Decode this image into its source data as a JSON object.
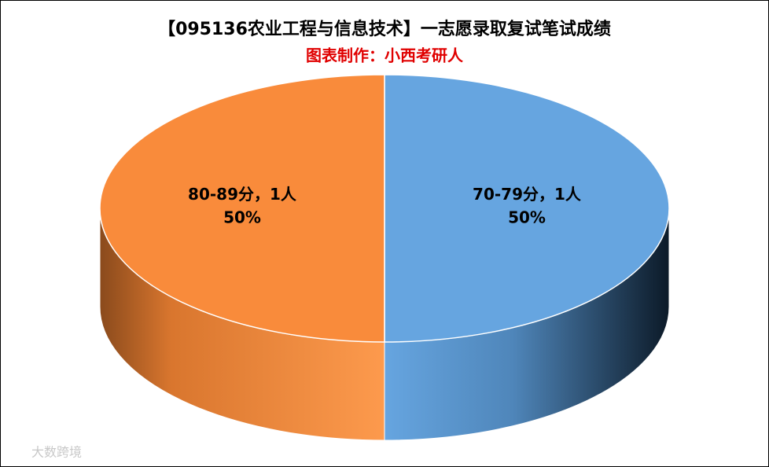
{
  "chart_data": {
    "type": "pie",
    "title": "【095136农业工程与信息技术】一志愿录取复试笔试成绩",
    "subtitle": "图表制作：小西考研人",
    "categories": [
      "70-79分",
      "80-89分"
    ],
    "values": [
      1,
      1
    ],
    "value_labels": [
      "1人",
      "1人"
    ],
    "label_separator": "，",
    "percentages": [
      50,
      50
    ],
    "percentage_labels": [
      "50%",
      "50%"
    ],
    "colors": [
      "#66a5e0",
      "#f98b3b"
    ],
    "watermark": "大数跨境"
  }
}
